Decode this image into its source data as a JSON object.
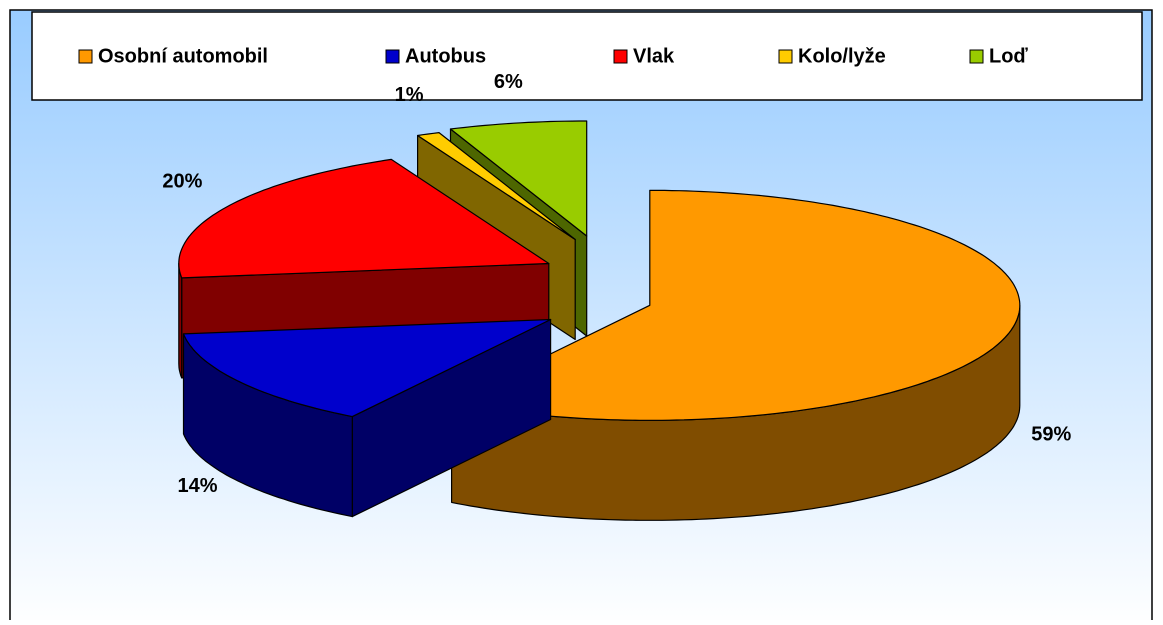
{
  "chart_data": {
    "type": "pie",
    "categories": [
      "Osobní automobil",
      "Autobus",
      "Vlak",
      "Kolo/lyže",
      "Loď"
    ],
    "values": [
      59,
      14,
      20,
      1,
      6
    ],
    "value_labels": [
      "59%",
      "14%",
      "20%",
      "1%",
      "6%"
    ],
    "colors": [
      "#FF9900",
      "#0000CC",
      "#FF0000",
      "#FFCC00",
      "#99CC00"
    ],
    "legend": "top"
  }
}
